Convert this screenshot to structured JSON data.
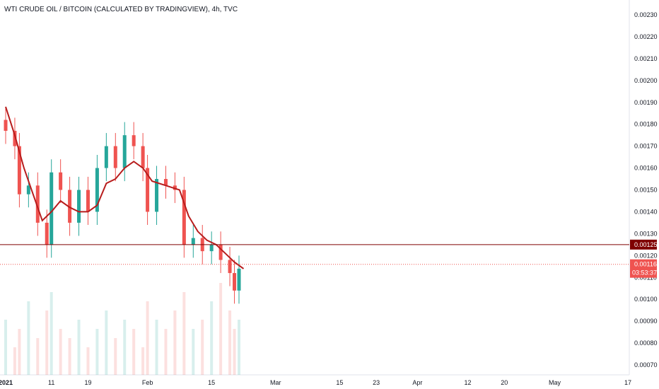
{
  "title": "WTI CRUDE OIL / BITCOIN (CALCULATED BY TRADINGVIEW), 4h, TVC",
  "chart_data": {
    "type": "candlestick",
    "title": "WTI CRUDE OIL / BITCOIN (CALCULATED BY TRADINGVIEW), 4h, TVC",
    "ylim": [
      0.00067,
      0.00235
    ],
    "y_ticks": [
      "0.00230",
      "0.00220",
      "0.00210",
      "0.00200",
      "0.00190",
      "0.00180",
      "0.00170",
      "0.00160",
      "0.00150",
      "0.00140",
      "0.00130",
      "0.00120",
      "0.00110",
      "0.00100",
      "0.00090",
      "0.00080",
      "0.00070"
    ],
    "x_tick_labels": [
      "2021",
      "11",
      "19",
      "Feb",
      "15",
      "Mar",
      "15",
      "23",
      "Apr",
      "12",
      "20",
      "May",
      "17"
    ],
    "x_tick_dates": [
      "2021-01-01",
      "2021-01-11",
      "2021-01-19",
      "2021-02-01",
      "2021-02-15",
      "2021-03-01",
      "2021-03-15",
      "2021-03-23",
      "2021-04-01",
      "2021-04-12",
      "2021-04-20",
      "2021-05-01",
      "2021-05-17"
    ],
    "moving_average_color": "#b71c1c",
    "up_color": "#26a69a",
    "down_color": "#ef5350",
    "close_series_approx": [
      {
        "date": "2021-01-01",
        "close": 0.00177
      },
      {
        "date": "2021-01-03",
        "close": 0.0017
      },
      {
        "date": "2021-01-04",
        "close": 0.00148
      },
      {
        "date": "2021-01-06",
        "close": 0.00152
      },
      {
        "date": "2021-01-08",
        "close": 0.00135
      },
      {
        "date": "2021-01-10",
        "close": 0.00125
      },
      {
        "date": "2021-01-11",
        "close": 0.00158
      },
      {
        "date": "2021-01-13",
        "close": 0.0015
      },
      {
        "date": "2021-01-15",
        "close": 0.00135
      },
      {
        "date": "2021-01-17",
        "close": 0.0015
      },
      {
        "date": "2021-01-19",
        "close": 0.0014
      },
      {
        "date": "2021-01-21",
        "close": 0.0016
      },
      {
        "date": "2021-01-23",
        "close": 0.0017
      },
      {
        "date": "2021-01-25",
        "close": 0.0016
      },
      {
        "date": "2021-01-27",
        "close": 0.00175
      },
      {
        "date": "2021-01-29",
        "close": 0.0017
      },
      {
        "date": "2021-01-31",
        "close": 0.0016
      },
      {
        "date": "2021-02-01",
        "close": 0.0014
      },
      {
        "date": "2021-02-03",
        "close": 0.00155
      },
      {
        "date": "2021-02-05",
        "close": 0.00152
      },
      {
        "date": "2021-02-07",
        "close": 0.0015
      },
      {
        "date": "2021-02-09",
        "close": 0.00125
      },
      {
        "date": "2021-02-11",
        "close": 0.00128
      },
      {
        "date": "2021-02-13",
        "close": 0.00122
      },
      {
        "date": "2021-02-15",
        "close": 0.00125
      },
      {
        "date": "2021-02-17",
        "close": 0.00118
      },
      {
        "date": "2021-02-19",
        "close": 0.00112
      },
      {
        "date": "2021-02-20",
        "close": 0.00104
      },
      {
        "date": "2021-02-21",
        "close": 0.00114
      }
    ],
    "moving_average": [
      {
        "date": "2021-01-01",
        "value": 0.00188
      },
      {
        "date": "2021-01-03",
        "value": 0.00175
      },
      {
        "date": "2021-01-05",
        "value": 0.0016
      },
      {
        "date": "2021-01-07",
        "value": 0.00148
      },
      {
        "date": "2021-01-09",
        "value": 0.00136
      },
      {
        "date": "2021-01-11",
        "value": 0.0014
      },
      {
        "date": "2021-01-13",
        "value": 0.00145
      },
      {
        "date": "2021-01-15",
        "value": 0.00142
      },
      {
        "date": "2021-01-17",
        "value": 0.0014
      },
      {
        "date": "2021-01-19",
        "value": 0.0014
      },
      {
        "date": "2021-01-21",
        "value": 0.00143
      },
      {
        "date": "2021-01-23",
        "value": 0.00153
      },
      {
        "date": "2021-01-25",
        "value": 0.00155
      },
      {
        "date": "2021-01-27",
        "value": 0.0016
      },
      {
        "date": "2021-01-29",
        "value": 0.00163
      },
      {
        "date": "2021-01-31",
        "value": 0.0016
      },
      {
        "date": "2021-02-02",
        "value": 0.00154
      },
      {
        "date": "2021-02-05",
        "value": 0.00152
      },
      {
        "date": "2021-02-08",
        "value": 0.0015
      },
      {
        "date": "2021-02-10",
        "value": 0.00138
      },
      {
        "date": "2021-02-12",
        "value": 0.00131
      },
      {
        "date": "2021-02-14",
        "value": 0.00127
      },
      {
        "date": "2021-02-16",
        "value": 0.00125
      },
      {
        "date": "2021-02-18",
        "value": 0.00121
      },
      {
        "date": "2021-02-20",
        "value": 0.00117
      },
      {
        "date": "2021-02-22",
        "value": 0.00114
      }
    ],
    "volume_relative_approx": [
      0.6,
      0.3,
      0.5,
      0.8,
      0.4,
      0.7,
      0.9,
      0.5,
      0.4,
      0.6,
      0.3,
      0.5,
      0.7,
      0.4,
      0.6,
      0.5,
      0.3,
      0.8,
      0.6,
      0.5,
      0.7,
      0.9,
      0.5,
      0.6,
      0.8,
      1.0,
      0.7,
      0.5,
      0.6
    ],
    "price_lines": [
      {
        "value": 0.00125,
        "label": "0.00125",
        "color": "#7f0000",
        "style": "solid"
      },
      {
        "value": 0.00116,
        "label": "0.00116",
        "color": "#ef5350",
        "style": "dotted"
      }
    ],
    "countdown_label": "03:53:37",
    "grid": false,
    "legend": "none"
  }
}
